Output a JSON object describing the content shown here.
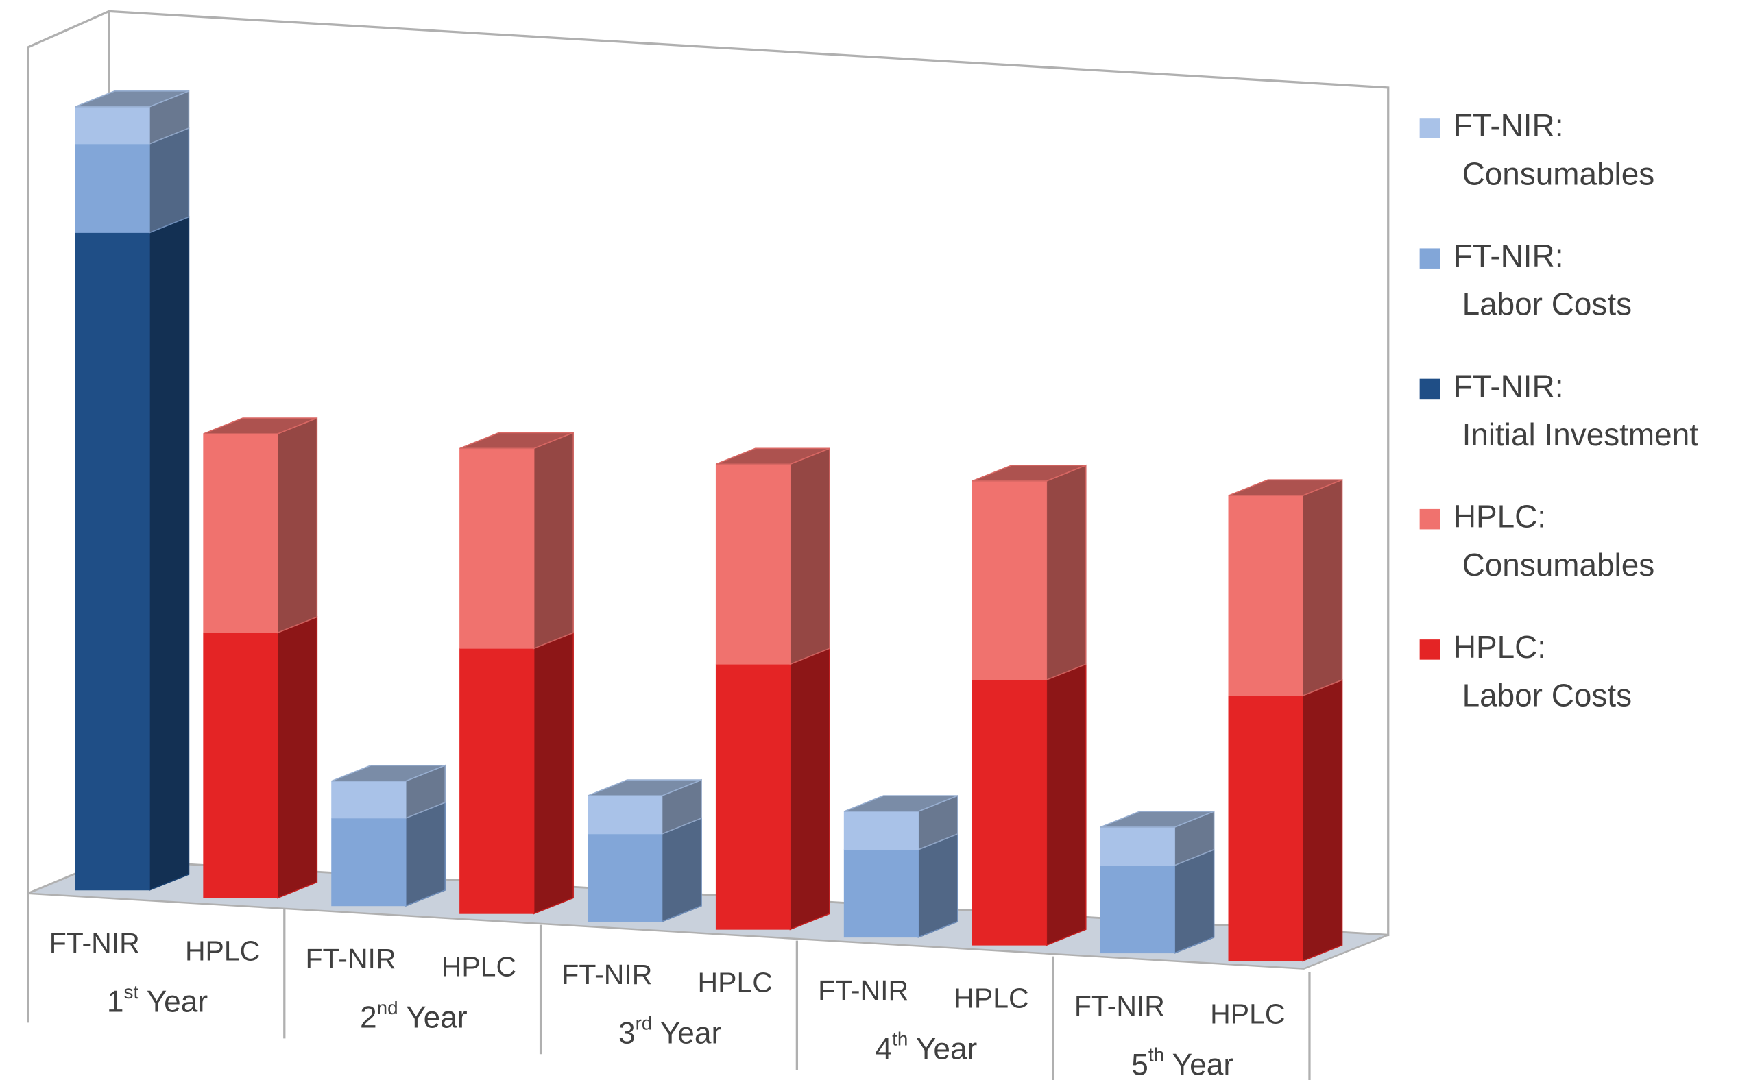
{
  "chart_data": {
    "type": "bar3d_stacked",
    "categories": [
      "1st Year",
      "2nd Year",
      "3rd Year",
      "4th Year",
      "5th Year"
    ],
    "stacks": [
      {
        "name": "FT-NIR",
        "series": [
          {
            "name": "FT-NIR: Consumables",
            "color": "#a9c2e8",
            "values": [
              33,
              33,
              34,
              34,
              34
            ]
          },
          {
            "name": "FT-NIR: Labor Costs",
            "color": "#82a6d8",
            "values": [
              79,
              78,
              78,
              78,
              78
            ]
          },
          {
            "name": "FT-NIR: Initial Investment",
            "color": "#1f4e86",
            "values": [
              585,
              0,
              0,
              0,
              0
            ]
          }
        ]
      },
      {
        "name": "HPLC",
        "series": [
          {
            "name": "HPLC: Consumables",
            "color": "#f0726e",
            "values": [
              177,
              178,
              178,
              177,
              178
            ]
          },
          {
            "name": "HPLC: Labor Costs",
            "color": "#e42425",
            "values": [
              236,
              236,
              236,
              236,
              236
            ]
          }
        ]
      }
    ]
  }
}
